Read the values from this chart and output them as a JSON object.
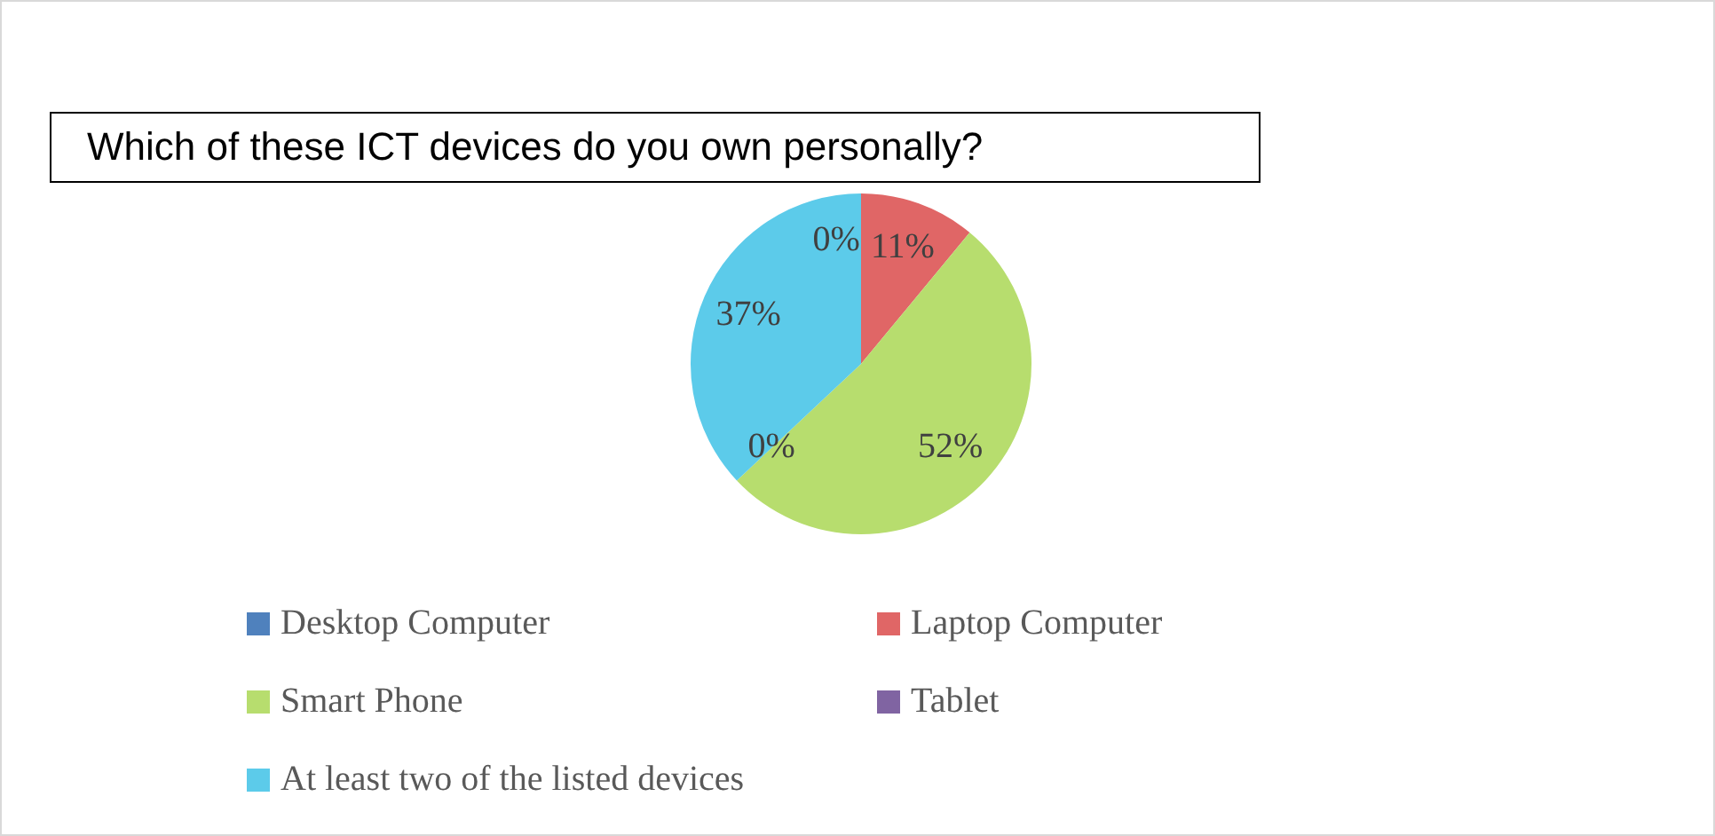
{
  "chart_data": {
    "type": "pie",
    "title": "Which of these ICT devices do you own personally?",
    "categories": [
      "Desktop Computer",
      "Laptop Computer",
      "Smart Phone",
      "Tablet",
      "At least two of the listed devices"
    ],
    "values": [
      0,
      11,
      52,
      0,
      37
    ],
    "value_labels": [
      "0%",
      "11%",
      "52%",
      "0%",
      "37%"
    ],
    "colors": [
      "#4f81bd",
      "#e06666",
      "#b7dd6e",
      "#8064a2",
      "#5ccbea"
    ],
    "legend": "bottom"
  }
}
